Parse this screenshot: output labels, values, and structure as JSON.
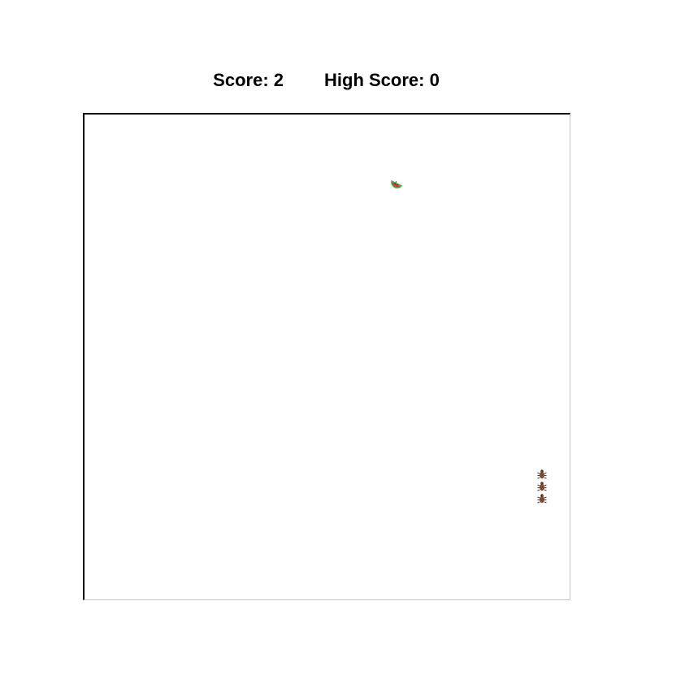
{
  "scoreboard": {
    "score_label": "Score: 2",
    "high_score_label": "High Score: 0"
  },
  "game": {
    "food_icon": "watermelon-slice-icon",
    "snake_segment_icon": "bug-icon",
    "snake_length": 3,
    "colors": {
      "board_border": "#000000",
      "board_border_light": "#c8c8c8",
      "food_red": "#e53935",
      "food_rind": "#4caf50",
      "bug_brown": "#7a4a32"
    }
  }
}
